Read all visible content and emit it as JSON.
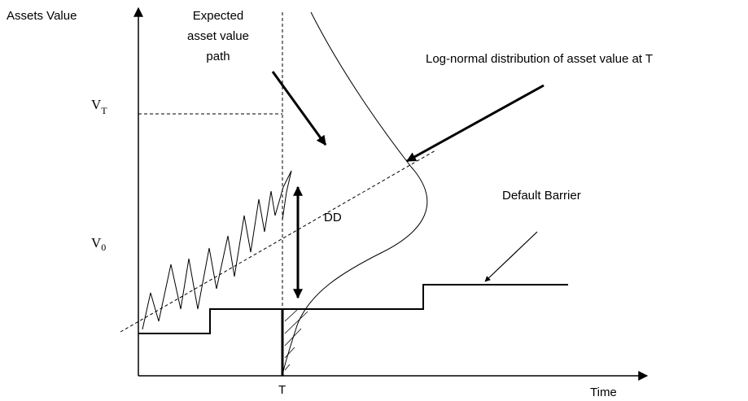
{
  "axis_labels": {
    "y": "Assets Value",
    "x": "Time",
    "t": "T"
  },
  "labels": {
    "expected_path": [
      "Expected",
      "asset value",
      "path"
    ],
    "lognormal": "Log-normal distribution of asset value at T",
    "vt": {
      "main": "V",
      "sub": "T"
    },
    "v0": {
      "main": "V",
      "sub": "0"
    },
    "dd": "DD",
    "barrier": "Default Barrier"
  }
}
